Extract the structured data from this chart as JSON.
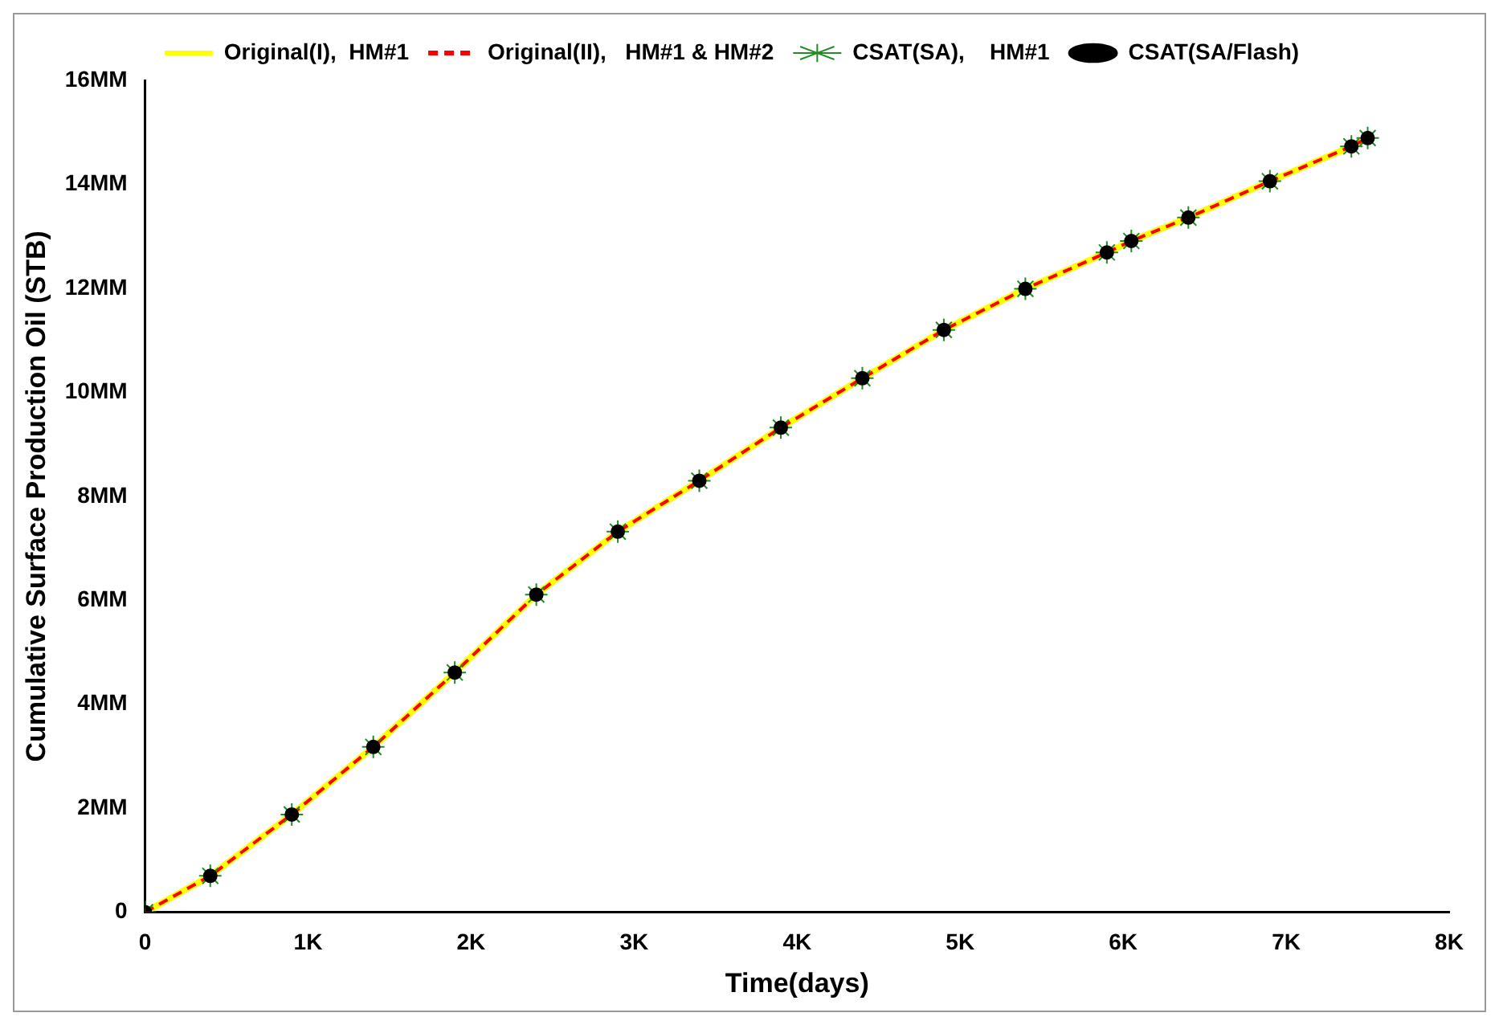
{
  "chart_data": {
    "type": "line",
    "xlabel": "Time(days)",
    "ylabel": "Cumulative Surface Production Oil (STB)",
    "xlim": [
      0,
      8000
    ],
    "xticks": [
      0,
      {
        "value": 1000,
        "label": "1K"
      },
      {
        "value": 2000,
        "label": "2K"
      },
      {
        "value": 3000,
        "label": "3K"
      },
      {
        "value": 4000,
        "label": "4K"
      },
      {
        "value": 5000,
        "label": "5K"
      },
      {
        "value": 6000,
        "label": "6K"
      },
      {
        "value": 7000,
        "label": "7K"
      },
      {
        "value": 8000,
        "label": "8K"
      }
    ],
    "ylim": [
      0,
      16
    ],
    "yticks": [
      0,
      {
        "value": 2,
        "label": "2MM"
      },
      {
        "value": 4,
        "label": "4MM"
      },
      {
        "value": 6,
        "label": "6MM"
      },
      {
        "value": 8,
        "label": "8MM"
      },
      {
        "value": 10,
        "label": "10MM"
      },
      {
        "value": 12,
        "label": "12MM"
      },
      {
        "value": 14,
        "label": "14MM"
      },
      {
        "value": 16,
        "label": "16MM"
      }
    ],
    "grid": false,
    "legend": "top",
    "series": [
      {
        "name": "Original(I),  HM#1",
        "type": "line",
        "color": "#ffff00",
        "line_style": "solid",
        "marker": "none",
        "x": [
          0,
          400,
          900,
          1400,
          1900,
          2400,
          2900,
          3400,
          3900,
          4400,
          4900,
          5400,
          5900,
          6050,
          6400,
          6900,
          7400,
          7500
        ],
        "values": [
          0,
          0.7,
          1.88,
          3.18,
          4.61,
          6.11,
          7.32,
          8.3,
          9.32,
          10.27,
          11.2,
          11.99,
          12.69,
          12.91,
          13.36,
          14.06,
          14.73,
          14.89
        ]
      },
      {
        "name": "Original(II),   HM#1 & HM#2",
        "type": "line",
        "color": "#ff0000",
        "line_style": "dashed",
        "marker": "none",
        "x": [
          0,
          400,
          900,
          1400,
          1900,
          2400,
          2900,
          3400,
          3900,
          4400,
          4900,
          5400,
          5900,
          6050,
          6400,
          6900,
          7400,
          7500
        ],
        "values": [
          0,
          0.7,
          1.88,
          3.18,
          4.61,
          6.11,
          7.32,
          8.3,
          9.32,
          10.27,
          11.2,
          11.99,
          12.69,
          12.91,
          13.36,
          14.06,
          14.73,
          14.89
        ]
      },
      {
        "name": "CSAT(SA),    HM#1",
        "type": "scatter",
        "color": "#228b22",
        "marker": "cross",
        "x": [
          0,
          400,
          900,
          1400,
          1900,
          2400,
          2900,
          3400,
          3900,
          4400,
          4900,
          5400,
          5900,
          6050,
          6400,
          6900,
          7400,
          7500
        ],
        "values": [
          0,
          0.7,
          1.88,
          3.18,
          4.61,
          6.11,
          7.32,
          8.3,
          9.32,
          10.27,
          11.2,
          11.99,
          12.69,
          12.91,
          13.36,
          14.06,
          14.73,
          14.89
        ]
      },
      {
        "name": "CSAT(SA/Flash)",
        "type": "scatter",
        "color": "#000000",
        "marker": "circle",
        "x": [
          0,
          400,
          900,
          1400,
          1900,
          2400,
          2900,
          3400,
          3900,
          4400,
          4900,
          5400,
          5900,
          6050,
          6400,
          6900,
          7400,
          7500
        ],
        "values": [
          0,
          0.7,
          1.88,
          3.18,
          4.61,
          6.11,
          7.32,
          8.3,
          9.32,
          10.27,
          11.2,
          11.99,
          12.69,
          12.91,
          13.36,
          14.06,
          14.73,
          14.89
        ]
      }
    ]
  }
}
